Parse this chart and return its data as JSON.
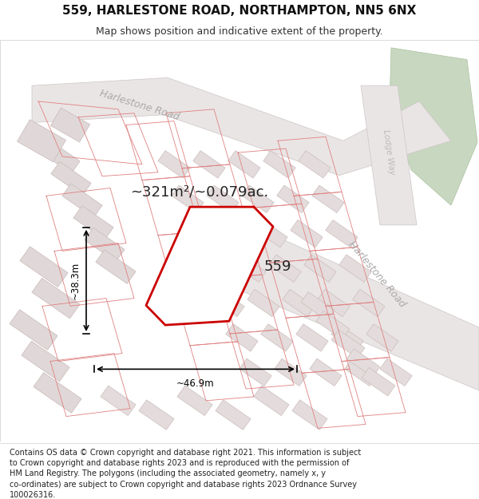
{
  "title_line1": "559, HARLESTONE ROAD, NORTHAMPTON, NN5 6NX",
  "title_line2": "Map shows position and indicative extent of the property.",
  "footer_lines": [
    "Contains OS data © Crown copyright and database right 2021. This information is subject",
    "to Crown copyright and database rights 2023 and is reproduced with the permission of",
    "HM Land Registry. The polygons (including the associated geometry, namely x, y",
    "co-ordinates) are subject to Crown copyright and database rights 2023 Ordnance Survey",
    "100026316."
  ],
  "area_label": "~321m²/~0.079ac.",
  "width_label": "~46.9m",
  "height_label": "~38.3m",
  "property_number": "559",
  "map_bg": "#f5f0f0",
  "plot_outline_color": "#cc0000",
  "green_area_color": "#c8d8c0",
  "title_fontsize": 11,
  "subtitle_fontsize": 9,
  "footer_fontsize": 7.0
}
